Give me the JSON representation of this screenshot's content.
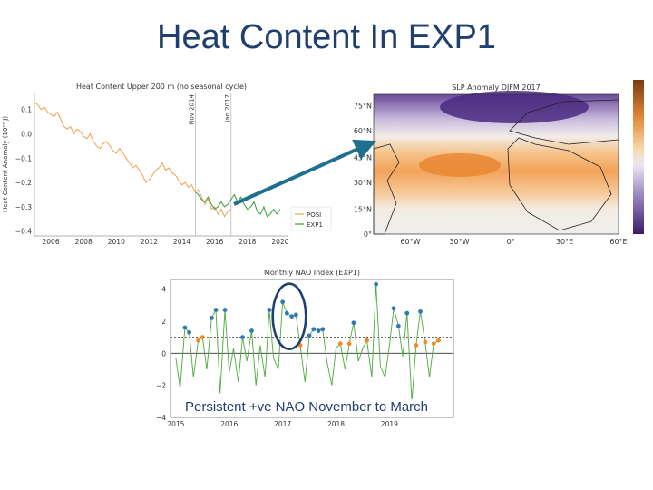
{
  "slide": {
    "title": "Heat Content In EXP1",
    "caption": "Persistent +ve NAO November to March"
  },
  "chart_data": [
    {
      "type": "line",
      "title": "Heat Content Upper 200 m (no seasonal cycle)",
      "ylabel": "Heat Content Anomaly (10²² J)",
      "xlabel": "",
      "xlim": [
        2005,
        2020.5
      ],
      "ylim": [
        -0.42,
        0.17
      ],
      "xticks": [
        "2006",
        "2008",
        "2010",
        "2012",
        "2014",
        "2016",
        "2018",
        "2020"
      ],
      "yticks": [
        "0.1",
        "0.0",
        "−0.1",
        "−0.2",
        "−0.3",
        "−0.4"
      ],
      "vlines": [
        {
          "x": 2014.83,
          "label": "Nov 2014"
        },
        {
          "x": 2017.0,
          "label": "Jan 2017"
        }
      ],
      "legend": "bottom-right",
      "series": [
        {
          "name": "POSI",
          "color": "#f0a04b",
          "x": [
            2005.0,
            2005.2,
            2005.4,
            2005.6,
            2005.8,
            2006.0,
            2006.2,
            2006.4,
            2006.6,
            2006.8,
            2007.0,
            2007.2,
            2007.4,
            2007.6,
            2007.8,
            2008.0,
            2008.2,
            2008.4,
            2008.6,
            2008.8,
            2009.0,
            2009.2,
            2009.4,
            2009.6,
            2009.8,
            2010.0,
            2010.2,
            2010.4,
            2010.6,
            2010.8,
            2011.0,
            2011.2,
            2011.4,
            2011.6,
            2011.8,
            2012.0,
            2012.2,
            2012.4,
            2012.6,
            2012.8,
            2013.0,
            2013.2,
            2013.4,
            2013.6,
            2013.8,
            2014.0,
            2014.2,
            2014.4,
            2014.6,
            2014.8,
            2015.0,
            2015.2,
            2015.4,
            2015.6,
            2015.8,
            2016.0,
            2016.2,
            2016.4,
            2016.6,
            2016.8,
            2017.0
          ],
          "values": [
            0.13,
            0.12,
            0.1,
            0.11,
            0.09,
            0.08,
            0.07,
            0.09,
            0.06,
            0.03,
            0.02,
            0.03,
            0.0,
            0.02,
            0.01,
            -0.01,
            -0.02,
            0.0,
            -0.03,
            -0.05,
            -0.06,
            -0.04,
            -0.03,
            -0.05,
            -0.07,
            -0.08,
            -0.06,
            -0.08,
            -0.1,
            -0.12,
            -0.14,
            -0.13,
            -0.15,
            -0.17,
            -0.2,
            -0.19,
            -0.17,
            -0.15,
            -0.14,
            -0.12,
            -0.15,
            -0.14,
            -0.16,
            -0.17,
            -0.19,
            -0.21,
            -0.2,
            -0.22,
            -0.21,
            -0.24,
            -0.23,
            -0.26,
            -0.29,
            -0.27,
            -0.31,
            -0.3,
            -0.33,
            -0.31,
            -0.34,
            -0.32,
            -0.31
          ]
        },
        {
          "name": "EXP1",
          "color": "#3a9a3a",
          "x": [
            2014.83,
            2015.0,
            2015.2,
            2015.4,
            2015.6,
            2015.8,
            2016.0,
            2016.2,
            2016.4,
            2016.6,
            2016.8,
            2017.0,
            2017.2,
            2017.4,
            2017.6,
            2017.8,
            2018.0,
            2018.2,
            2018.4,
            2018.6,
            2018.8,
            2019.0,
            2019.2,
            2019.4,
            2019.6,
            2019.8,
            2020.0
          ],
          "values": [
            -0.24,
            -0.25,
            -0.27,
            -0.28,
            -0.26,
            -0.29,
            -0.31,
            -0.3,
            -0.28,
            -0.3,
            -0.29,
            -0.27,
            -0.25,
            -0.28,
            -0.26,
            -0.29,
            -0.31,
            -0.3,
            -0.28,
            -0.32,
            -0.33,
            -0.3,
            -0.34,
            -0.33,
            -0.31,
            -0.33,
            -0.31
          ]
        }
      ]
    },
    {
      "type": "heatmap",
      "title": "SLP Anomaly DJFM 2017",
      "lat_labels": [
        "75°N",
        "60°N",
        "45°N",
        "30°N",
        "15°N",
        "0°"
      ],
      "lon_labels": [
        "60°W",
        "30°W",
        "0°",
        "30°E",
        "60°E"
      ],
      "colorbar": "right"
    },
    {
      "type": "line",
      "title": "Monthly NAO Index (EXP1)",
      "xlim": [
        2014.9,
        2020.2
      ],
      "ylim": [
        -4,
        4.6
      ],
      "xticks": [
        "2015",
        "2016",
        "2017",
        "2018",
        "2019"
      ],
      "yticks": [
        "4",
        "2",
        "0",
        "−2",
        "−4"
      ],
      "threshold": 1.0,
      "line_color": "#4aaa3a",
      "positive_marker_color": "#2f7ab5",
      "moderate_marker_color": "#f08a2a",
      "x": [
        2015.0,
        2015.08,
        2015.17,
        2015.25,
        2015.33,
        2015.42,
        2015.5,
        2015.58,
        2015.67,
        2015.75,
        2015.83,
        2015.92,
        2016.0,
        2016.08,
        2016.17,
        2016.25,
        2016.33,
        2016.42,
        2016.5,
        2016.58,
        2016.67,
        2016.75,
        2016.83,
        2016.92,
        2017.0,
        2017.08,
        2017.17,
        2017.25,
        2017.33,
        2017.42,
        2017.5,
        2017.58,
        2017.67,
        2017.75,
        2017.83,
        2017.92,
        2018.0,
        2018.08,
        2018.17,
        2018.25,
        2018.33,
        2018.42,
        2018.5,
        2018.58,
        2018.67,
        2018.75,
        2018.83,
        2018.92,
        2019.0,
        2019.08,
        2019.17,
        2019.25,
        2019.33,
        2019.42,
        2019.5,
        2019.58,
        2019.67,
        2019.75,
        2019.83,
        2019.92
      ],
      "values": [
        -0.3,
        -2.2,
        1.6,
        1.3,
        -1.5,
        0.8,
        1.0,
        -1.0,
        2.2,
        2.7,
        -2.5,
        2.7,
        -1.2,
        0.3,
        -1.8,
        1.0,
        -0.5,
        1.4,
        -2.0,
        0.5,
        -1.5,
        2.7,
        -0.3,
        -1.0,
        3.2,
        2.5,
        2.3,
        2.4,
        0.5,
        -1.8,
        1.1,
        1.5,
        1.4,
        1.5,
        -0.5,
        -2.0,
        0.3,
        0.6,
        -1.0,
        0.6,
        1.9,
        -0.5,
        0.3,
        0.8,
        -1.5,
        4.3,
        -0.8,
        -1.5,
        0.5,
        2.8,
        1.7,
        -0.2,
        2.5,
        -3.0,
        0.5,
        2.6,
        0.7,
        -1.5,
        0.6,
        0.8
      ],
      "markers": [
        {
          "x": 2015.17,
          "y": 1.6,
          "kind": "strong"
        },
        {
          "x": 2015.25,
          "y": 1.3,
          "kind": "strong"
        },
        {
          "x": 2015.42,
          "y": 0.8,
          "kind": "moderate"
        },
        {
          "x": 2015.5,
          "y": 1.0,
          "kind": "moderate"
        },
        {
          "x": 2015.67,
          "y": 2.2,
          "kind": "strong"
        },
        {
          "x": 2015.75,
          "y": 2.7,
          "kind": "strong"
        },
        {
          "x": 2015.92,
          "y": 2.7,
          "kind": "strong"
        },
        {
          "x": 2016.25,
          "y": 1.0,
          "kind": "strong"
        },
        {
          "x": 2016.42,
          "y": 1.4,
          "kind": "strong"
        },
        {
          "x": 2016.75,
          "y": 2.7,
          "kind": "strong"
        },
        {
          "x": 2017.0,
          "y": 3.2,
          "kind": "strong"
        },
        {
          "x": 2017.08,
          "y": 2.5,
          "kind": "strong"
        },
        {
          "x": 2017.17,
          "y": 2.3,
          "kind": "strong"
        },
        {
          "x": 2017.25,
          "y": 2.4,
          "kind": "strong"
        },
        {
          "x": 2017.33,
          "y": 0.5,
          "kind": "moderate"
        },
        {
          "x": 2017.5,
          "y": 1.1,
          "kind": "strong"
        },
        {
          "x": 2017.58,
          "y": 1.5,
          "kind": "strong"
        },
        {
          "x": 2017.67,
          "y": 1.4,
          "kind": "strong"
        },
        {
          "x": 2017.75,
          "y": 1.5,
          "kind": "strong"
        },
        {
          "x": 2018.08,
          "y": 0.6,
          "kind": "moderate"
        },
        {
          "x": 2018.25,
          "y": 0.6,
          "kind": "moderate"
        },
        {
          "x": 2018.33,
          "y": 1.9,
          "kind": "strong"
        },
        {
          "x": 2018.58,
          "y": 0.8,
          "kind": "moderate"
        },
        {
          "x": 2018.75,
          "y": 4.3,
          "kind": "strong"
        },
        {
          "x": 2019.08,
          "y": 2.8,
          "kind": "strong"
        },
        {
          "x": 2019.17,
          "y": 1.7,
          "kind": "strong"
        },
        {
          "x": 2019.33,
          "y": 2.5,
          "kind": "strong"
        },
        {
          "x": 2019.5,
          "y": 0.5,
          "kind": "moderate"
        },
        {
          "x": 2019.58,
          "y": 2.6,
          "kind": "strong"
        },
        {
          "x": 2019.67,
          "y": 0.7,
          "kind": "moderate"
        },
        {
          "x": 2019.83,
          "y": 0.6,
          "kind": "moderate"
        },
        {
          "x": 2019.92,
          "y": 0.8,
          "kind": "moderate"
        }
      ],
      "highlight": {
        "x_from": 2016.95,
        "x_to": 2017.3,
        "color": "#1f3f6e"
      }
    }
  ],
  "arrow_color": "#1f6f8f"
}
